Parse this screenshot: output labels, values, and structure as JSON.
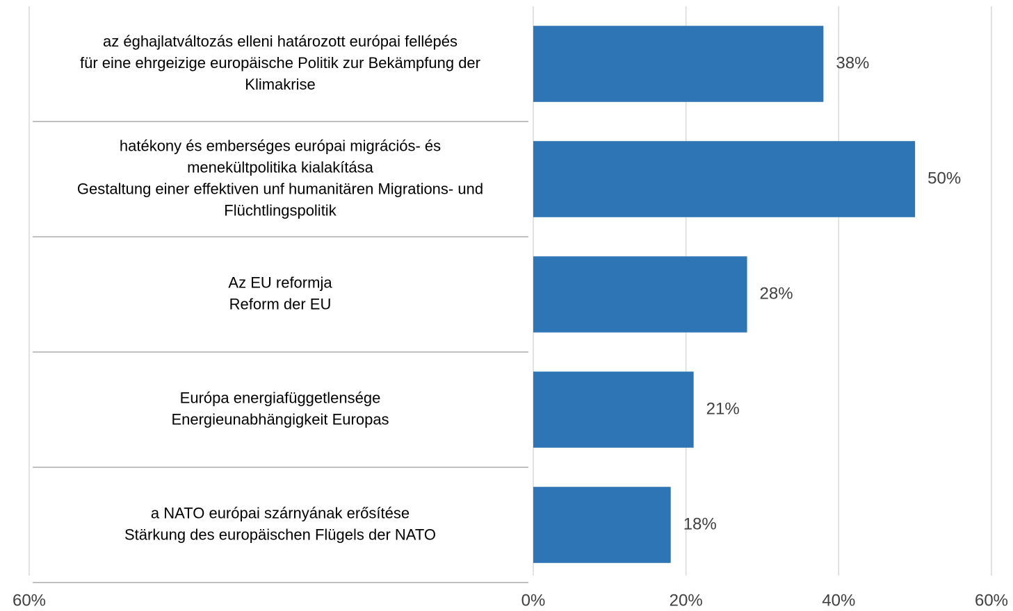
{
  "chart_data": {
    "type": "bar",
    "orientation": "horizontal",
    "categories": [
      [
        "az éghajlatváltozás elleni határozott európai fellépés",
        "für eine ehrgeizige europäische Politik zur Bekämpfung der",
        "Klimakrise"
      ],
      [
        "hatékony és emberséges európai migrációs- és",
        "menekültpolitika kialakítása",
        "Gestaltung einer effektiven unf humanitären Migrations- und",
        "Flüchtlingspolitik"
      ],
      [
        "Az EU reformja",
        "Reform der EU"
      ],
      [
        "Európa energiafüggetlensége",
        "Energieunabhängigkeit Europas"
      ],
      [
        "a NATO európai szárnyának erősítése",
        "Stärkung des europäischen Flügels der NATO"
      ]
    ],
    "values": [
      38,
      50,
      28,
      21,
      18
    ],
    "value_labels": [
      "38%",
      "50%",
      "28%",
      "21%",
      "18%"
    ],
    "color": "#2e75b6",
    "xlim": [
      0,
      60
    ],
    "xticks": [
      {
        "value": 0,
        "label": "0%"
      },
      {
        "value": 20,
        "label": "20%"
      },
      {
        "value": 40,
        "label": "40%"
      },
      {
        "value": 60,
        "label": "60%"
      }
    ],
    "left_xlim": [
      60,
      0
    ],
    "left_xticks": [
      {
        "value": 60,
        "label": "60%"
      }
    ],
    "grid": true
  }
}
